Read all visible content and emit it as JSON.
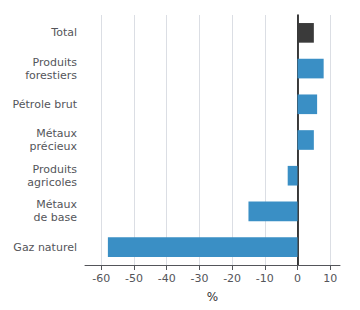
{
  "chart_data": {
    "type": "bar",
    "orientation": "horizontal",
    "categories": [
      "Gaz naturel",
      "Métaux\nde base",
      "Produits\nagricoles",
      "Métaux\nprécieux",
      "Pétrole brut",
      "Produits\nforestiers",
      "Total"
    ],
    "values": [
      -58,
      -15,
      -3,
      5,
      6,
      8,
      5
    ],
    "colors": [
      "#3a8fc5",
      "#3a8fc5",
      "#3a8fc5",
      "#3a8fc5",
      "#3a8fc5",
      "#3a8fc5",
      "#3a3a3a"
    ],
    "xlim": [
      -65,
      13
    ],
    "xticks": [
      -60,
      -50,
      -40,
      -30,
      -20,
      -10,
      0,
      10
    ],
    "xlabel": "%",
    "grid": true
  }
}
